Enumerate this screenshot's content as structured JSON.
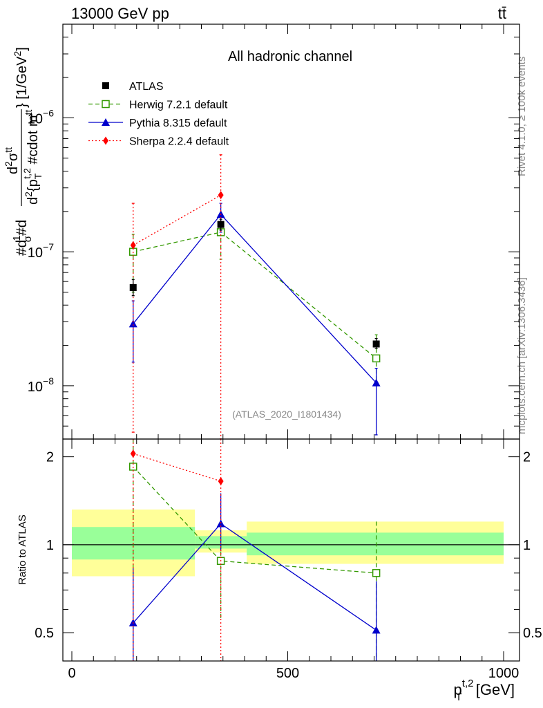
{
  "header": {
    "left": "13000 GeV pp",
    "right": "tt̄"
  },
  "chart_data": {
    "type": "scatter",
    "title": "All hadronic channel",
    "watermark": "(ATLAS_2020_I1801434)",
    "side_label_top": "Rivet 4.1.0, ≥ 100k events",
    "side_label_bottom": "mcplots.cern.ch [arXiv:1306.3436]",
    "ylabel": "#d1/σ#d d²σ^tt/d²{p_T^t,2 #cdot m^tt} [1/GeV²]",
    "ylabel_parts": {
      "a": "#d",
      "b": "1",
      "c": "σ",
      "d": "#d",
      "e": "d",
      "f": "2",
      "g": "σ",
      "h": "tt",
      "i": "d",
      "j": "2",
      "k": "{p",
      "l": "T",
      "m": "t,2",
      "n": " #cdot m",
      "o": "tt",
      "p": "} [1/GeV",
      "q": "2",
      "r": "]"
    },
    "xlabel": {
      "base": "p",
      "sub": "T",
      "sup": "t,2",
      "unit": " [GeV]"
    },
    "ratio_ylabel": "Ratio to ATLAS",
    "xlim": [
      -15,
      1000
    ],
    "ylim_main": [
      4e-09,
      5e-06
    ],
    "ylim_ratio": [
      0.4,
      2.3
    ],
    "x_ticks": [
      "0",
      "500",
      "1000"
    ],
    "y_ticks_main": [
      {
        "base": "10",
        "exp": "−6",
        "value": 1e-06
      },
      {
        "base": "10",
        "exp": "−7",
        "value": 1e-07
      },
      {
        "base": "10",
        "exp": "−8",
        "value": 1e-08
      }
    ],
    "y_ticks_ratio": [
      {
        "label": "2",
        "value": 2
      },
      {
        "label": "1",
        "value": 1
      },
      {
        "label": "0.5",
        "value": 0.5
      }
    ],
    "bins": [
      {
        "lo": 0,
        "hi": 285,
        "center": 142
      },
      {
        "lo": 285,
        "hi": 405,
        "center": 345
      },
      {
        "lo": 405,
        "hi": 1000,
        "center": 705
      }
    ],
    "ref_band": [
      {
        "lo": 0,
        "hi": 285,
        "y1_lo": 0.89,
        "y1_hi": 1.15,
        "y2_lo": 0.78,
        "y2_hi": 1.32
      },
      {
        "lo": 285,
        "hi": 405,
        "y1_lo": 0.97,
        "y1_hi": 1.07,
        "y2_lo": 0.94,
        "y2_hi": 1.12
      },
      {
        "lo": 405,
        "hi": 1000,
        "y1_lo": 0.92,
        "y1_hi": 1.1,
        "y2_lo": 0.86,
        "y2_hi": 1.2
      }
    ],
    "series": [
      {
        "name": "ATLAS",
        "color": "#000000",
        "marker": "square",
        "dash": "",
        "x": [
          142,
          345,
          705
        ],
        "y": [
          5.4e-08,
          1.6e-07,
          2.05e-08
        ],
        "yerr_lo": [
          4.7e-08,
          1.45e-07,
          1.9e-08
        ],
        "yerr_hi": [
          6.2e-08,
          1.75e-07,
          2.25e-08
        ]
      },
      {
        "name": "Herwig 7.2.1 default",
        "color": "#339900",
        "marker": "open-square",
        "dash": "6,4",
        "x": [
          142,
          345,
          705
        ],
        "y": [
          1e-07,
          1.4e-07,
          1.6e-08
        ],
        "yerr_lo": [
          5e-08,
          8.8e-08,
          1e-08
        ],
        "yerr_hi": [
          1.35e-07,
          1.6e-07,
          2.4e-08
        ],
        "ratio": [
          1.85,
          0.88,
          0.8
        ],
        "ratio_lo": [
          0.4,
          0.55,
          0.4
        ],
        "ratio_hi": [
          2.3,
          1.0,
          1.2
        ]
      },
      {
        "name": "Pythia 8.315 default",
        "color": "#0000cc",
        "marker": "triangle",
        "dash": "",
        "x": [
          142,
          345,
          705
        ],
        "y": [
          2.9e-08,
          1.9e-07,
          1.05e-08
        ],
        "yerr_lo": [
          1.5e-08,
          1.4e-07,
          4.3e-09
        ],
        "yerr_hi": [
          4.3e-08,
          2.3e-07,
          1.35e-08
        ],
        "ratio": [
          0.54,
          1.18,
          0.51
        ],
        "ratio_lo": [
          0.4,
          0.95,
          0.4
        ],
        "ratio_hi": [
          0.83,
          1.5,
          0.75
        ]
      },
      {
        "name": "Sherpa 2.2.4 default",
        "color": "#ff0000",
        "marker": "diamond",
        "dash": "2,3",
        "x": [
          142,
          345,
          705
        ],
        "y": [
          1.12e-07,
          2.65e-07,
          null
        ],
        "yerr_lo": [
          4.5e-09,
          4e-09,
          null
        ],
        "yerr_hi": [
          2.3e-07,
          5.3e-07,
          null
        ],
        "ratio": [
          2.05,
          1.65,
          null
        ],
        "ratio_lo": [
          0.4,
          0.4,
          null
        ],
        "ratio_hi": [
          2.3,
          2.3,
          null
        ]
      }
    ]
  }
}
